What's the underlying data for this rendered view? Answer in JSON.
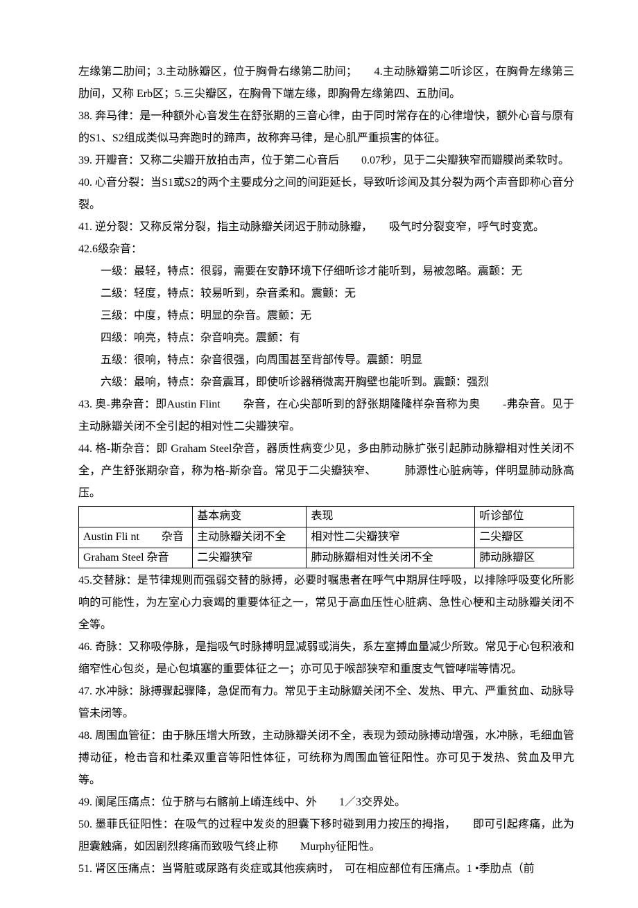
{
  "paragraphs": {
    "p37b": "左缘第二肋间；3.主动脉瓣区，位于胸骨右缘第二肋间；　　4.主动脉瓣第二听诊区，在胸骨左缘第三肋间，又称 Erb区；5.三尖瓣区，在胸骨下端左缘，即胸骨左缘第四、五肋间。",
    "p38": "38. 奔马律：是一种额外心音发生在舒张期的三音心律，由于同时常存在的心律增快，额外心音与原有的S1、S2组成类似马奔跑时的蹄声，故称奔马律，是心肌严重损害的体征。",
    "p39": "39. 开瓣音：又称二尖瓣开放拍击声，位于第二心音后　　0.07秒，见于二尖瓣狭窄而瓣膜尚柔软时。",
    "p40": "40. 心音分裂：当S1或S2的两个主要成分之间的间距延长，导致听诊闻及其分裂为两个声音即称心音分裂。",
    "p41": "41. 逆分裂：又称反常分裂，指主动脉瓣关闭迟于肺动脉瓣，　　吸气时分裂变窄，呼气时变宽。",
    "p42": "42.6级杂音：",
    "p42_1": "一级：最轻，特点：很弱，需要在安静环境下仔细听诊才能听到，易被忽略。震颤：无",
    "p42_2": "二级：轻度，特点：较易听到，杂音柔和。震颤：无",
    "p42_3": "三级：中度，特点：明显的杂音。震颤：无",
    "p42_4": "四级：响亮，特点：杂音响亮。震颤：有",
    "p42_5": "五级：很响，特点：杂音很强，向周围甚至背部传导。震颤：明显",
    "p42_6": "六级：最响，特点：杂音震耳，即使听诊器稍微离开胸壁也能听到。震颤：强烈",
    "p43": "43. 奥-弗杂音：即Austin Flint　　杂音，在心尖部听到的舒张期隆隆样杂音称为奥　　-弗杂音。见于主动脉瓣关闭不全引起的相对性二尖瓣狭窄。",
    "p44": "44. 格-斯杂音：即 Graham Steel杂音，器质性病变少见，多由肺动脉扩张引起肺动脉瓣相对性关闭不全，产生舒张期杂音，称为格-斯杂音。常见于二尖瓣狭窄、　　　肺源性心脏病等，伴明显肺动脉高压。",
    "p45": "45.交替脉：是节律规则而强弱交替的脉搏，必要时嘱患者在呼气中期屏住呼吸，以排除呼吸变化所影响的可能性，为左室心力衰竭的重要体征之一，常见于高血压性心脏病、急性心梗和主动脉瓣关闭不全等。",
    "p46": "46. 奇脉：又称吸停脉，是指吸气时脉搏明显减弱或消失，系左室搏血量减少所致。常见于心包积液和缩窄性心包炎，是心包填塞的重要体征之一；亦可见于喉部狭窄和重度支气管哮喘等情况。",
    "p47": "47. 水冲脉：脉搏骤起骤降，急促而有力。常见于主动脉瓣关闭不全、发热、甲亢、严重贫血、动脉导管未闭等。",
    "p48": "48. 周围血管征：由于脉压增大所致，主动脉瓣关闭不全，表现为颈动脉搏动增强，水冲脉，毛细血管搏动征，枪击音和杜柔双重音等阳性体征，可统称为周围血管征阳性。亦可见于发热、贫血及甲亢等。",
    "p49": "49. 阑尾压痛点：位于脐与右髂前上嵴连线中、外　　1／3交界处。",
    "p50": "50. 墨菲氏征阳性：在吸气的过程中发炎的胆囊下移时碰到用力按压的拇指，　　即可引起疼痛，此为胆囊触痛，如因剧烈疼痛而致吸气终止称　　Murphy征阳性。",
    "p51": "51. 肾区压痛点：当肾脏或尿路有炎症或其他疾病时，　可在相应部位有压痛点。1 •季肋点（前"
  },
  "table": {
    "header": [
      "",
      "基本病变",
      "表现",
      "听诊部位"
    ],
    "rows": [
      [
        "Austin Fli nt　　杂音",
        "主动脉瓣关闭不全",
        "相对性二尖瓣狭窄",
        "二尖瓣区"
      ],
      [
        "Graham Steel 杂音",
        "二尖瓣狭窄",
        "肺动脉瓣相对性关闭不全",
        "肺动脉瓣区"
      ]
    ]
  }
}
